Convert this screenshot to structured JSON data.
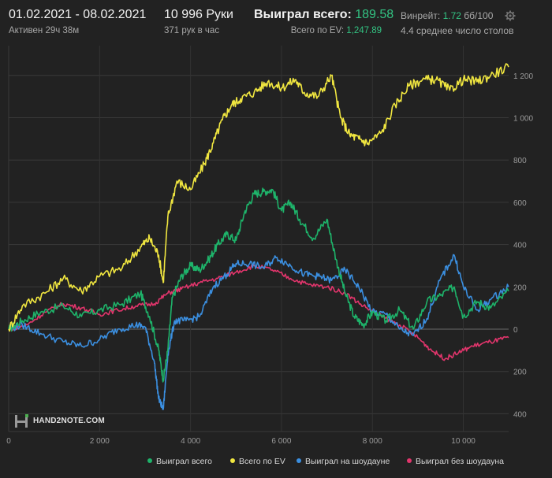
{
  "header": {
    "date_range": "01.02.2021 - 08.02.2021",
    "active": "Активен 29ч 38м",
    "hands": "10 996 Руки",
    "hands_per_hour": "371 рук в час",
    "won_label": "Выиграл всего:",
    "won_value": "189.58",
    "ev_label": "Всего по EV:",
    "ev_value": "1,247.89",
    "winrate_label": "Винрейт:",
    "winrate_value": "1.72",
    "winrate_unit": "бб/100",
    "tables": "4.4 среднее число столов",
    "settings_icon": "gear-icon"
  },
  "logo": {
    "text": "HAND2NOTE.COM",
    "icon": "h2n-logo-icon"
  },
  "legend": [
    {
      "name": "Выиграл всего",
      "color": "#1eb36a"
    },
    {
      "name": "Всего по EV",
      "color": "#f0e640"
    },
    {
      "name": "Выиграл на шоудауне",
      "color": "#3b8fe0"
    },
    {
      "name": "Выиграл без шоудауна",
      "color": "#e2356c"
    }
  ],
  "chart_data": {
    "type": "line",
    "x_ticks": [
      0,
      2000,
      4000,
      6000,
      8000,
      10000
    ],
    "x_tick_labels": [
      "0",
      "2 000",
      "4 000",
      "6 000",
      "8 000",
      "10 000"
    ],
    "y_ticks": [
      -400,
      -200,
      0,
      200,
      400,
      600,
      800,
      1000,
      1200
    ],
    "y_tick_labels": [
      "400",
      "200",
      "0",
      "200",
      "400",
      "600",
      "800",
      "1 000",
      "1 200"
    ],
    "xlim": [
      0,
      11000
    ],
    "ylim": [
      -450,
      1300
    ],
    "grid": true,
    "legend_position": "bottom-right",
    "series": [
      {
        "name": "Выиграл всего",
        "color": "#1eb36a",
        "x": [
          0,
          300,
          700,
          1200,
          1600,
          2000,
          2500,
          2900,
          3100,
          3300,
          3400,
          3500,
          3600,
          3800,
          4000,
          4200,
          4400,
          4600,
          4800,
          5000,
          5200,
          5400,
          5600,
          5800,
          6000,
          6200,
          6400,
          6700,
          7000,
          7200,
          7400,
          7600,
          7800,
          8000,
          8300,
          8600,
          8900,
          9200,
          9500,
          9800,
          10000,
          10300,
          10600,
          10996
        ],
        "y": [
          0,
          40,
          80,
          110,
          60,
          90,
          120,
          170,
          60,
          -100,
          -240,
          -100,
          150,
          250,
          300,
          280,
          330,
          400,
          450,
          420,
          560,
          640,
          650,
          660,
          560,
          600,
          520,
          430,
          520,
          330,
          170,
          60,
          20,
          80,
          40,
          90,
          0,
          130,
          160,
          200,
          60,
          130,
          100,
          180
        ]
      },
      {
        "name": "Всего по EV",
        "color": "#f0e640",
        "x": [
          0,
          300,
          800,
          1200,
          1600,
          2000,
          2500,
          2900,
          3100,
          3300,
          3400,
          3500,
          3700,
          4000,
          4300,
          4500,
          4700,
          4900,
          5100,
          5400,
          5700,
          6000,
          6300,
          6500,
          6800,
          7100,
          7300,
          7500,
          7700,
          7900,
          8200,
          8500,
          8800,
          9100,
          9400,
          9700,
          10000,
          10300,
          10600,
          10996
        ],
        "y": [
          0,
          110,
          170,
          240,
          180,
          250,
          290,
          390,
          430,
          350,
          220,
          530,
          700,
          660,
          780,
          880,
          990,
          1060,
          1090,
          1120,
          1170,
          1140,
          1180,
          1120,
          1100,
          1200,
          1000,
          920,
          900,
          880,
          930,
          1060,
          1150,
          1180,
          1180,
          1130,
          1180,
          1170,
          1200,
          1240
        ]
      },
      {
        "name": "Выиграл на шоудауне",
        "color": "#3b8fe0",
        "x": [
          0,
          300,
          700,
          1200,
          1600,
          2000,
          2400,
          2800,
          3000,
          3200,
          3300,
          3400,
          3500,
          3650,
          3900,
          4200,
          4500,
          4800,
          5000,
          5300,
          5600,
          5900,
          6200,
          6500,
          6800,
          7100,
          7400,
          7700,
          8000,
          8300,
          8600,
          8900,
          9200,
          9500,
          9800,
          10000,
          10300,
          10600,
          10996
        ],
        "y": [
          0,
          20,
          -20,
          -60,
          -80,
          -50,
          0,
          20,
          10,
          -150,
          -330,
          -380,
          -120,
          40,
          40,
          60,
          200,
          260,
          310,
          310,
          290,
          340,
          300,
          260,
          250,
          230,
          280,
          200,
          80,
          70,
          0,
          -30,
          50,
          240,
          350,
          200,
          90,
          140,
          200
        ]
      },
      {
        "name": "Выиграл без шоудауна",
        "color": "#e2356c",
        "x": [
          0,
          400,
          800,
          1200,
          1600,
          2000,
          2400,
          2800,
          3200,
          3500,
          3800,
          4200,
          4600,
          5000,
          5400,
          5800,
          6200,
          6600,
          7000,
          7400,
          7800,
          8200,
          8600,
          9000,
          9300,
          9600,
          9900,
          10200,
          10600,
          10996
        ],
        "y": [
          0,
          20,
          80,
          120,
          100,
          70,
          90,
          110,
          120,
          170,
          190,
          220,
          240,
          270,
          300,
          280,
          240,
          210,
          200,
          170,
          110,
          60,
          20,
          -40,
          -100,
          -140,
          -110,
          -80,
          -60,
          -40
        ]
      }
    ]
  }
}
